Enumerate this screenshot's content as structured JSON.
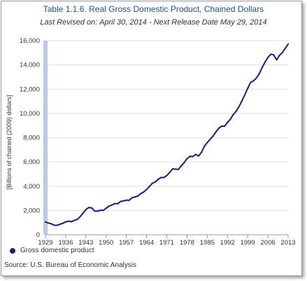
{
  "chart_data": {
    "type": "line",
    "title": "Table 1.1.6. Real Gross Domestic Product, Chained Dollars",
    "subtitle": "Last Revised on: April 30, 2014 - Next Release Date May 29, 2014",
    "ylabel": "[Billions of chained (2009) dollars]",
    "xlabel": "",
    "source": "Source: U.S. Bureau of Economic Analysis",
    "xlim": [
      1929,
      2013
    ],
    "ylim": [
      0,
      16000
    ],
    "yticks": [
      0,
      2000,
      4000,
      6000,
      8000,
      10000,
      12000,
      14000,
      16000
    ],
    "ytick_labels": [
      "0",
      "2,000",
      "4,000",
      "6,000",
      "8,000",
      "10,000",
      "12,000",
      "14,000",
      "16,000"
    ],
    "xticks": [
      1929,
      1936,
      1943,
      1950,
      1957,
      1964,
      1971,
      1978,
      1985,
      1992,
      1999,
      2006,
      2013
    ],
    "xtick_labels": [
      "1929",
      "1936",
      "1943",
      "1950",
      "1957",
      "1964",
      "1971",
      "1978",
      "1985",
      "1992",
      "1999",
      "2006",
      "2013"
    ],
    "grid": true,
    "legend": "bottom-left",
    "series": [
      {
        "name": "Gross domestic product",
        "color": "#13237a",
        "x": [
          1929,
          1930,
          1931,
          1932,
          1933,
          1934,
          1935,
          1936,
          1937,
          1938,
          1939,
          1940,
          1941,
          1942,
          1943,
          1944,
          1945,
          1946,
          1947,
          1948,
          1949,
          1950,
          1951,
          1952,
          1953,
          1954,
          1955,
          1956,
          1957,
          1958,
          1959,
          1960,
          1961,
          1962,
          1963,
          1964,
          1965,
          1966,
          1967,
          1968,
          1969,
          1970,
          1971,
          1972,
          1973,
          1974,
          1975,
          1976,
          1977,
          1978,
          1979,
          1980,
          1981,
          1982,
          1983,
          1984,
          1985,
          1986,
          1987,
          1988,
          1989,
          1990,
          1991,
          1992,
          1993,
          1994,
          1995,
          1996,
          1997,
          1998,
          1999,
          2000,
          2001,
          2002,
          2003,
          2004,
          2005,
          2006,
          2007,
          2008,
          2009,
          2010,
          2011,
          2012,
          2013
        ],
        "values": [
          1057,
          967,
          905,
          788,
          778,
          862,
          939,
          1061,
          1115,
          1083,
          1170,
          1267,
          1491,
          1774,
          2072,
          2240,
          2218,
          1961,
          1939,
          2019,
          2009,
          2185,
          2359,
          2448,
          2572,
          2559,
          2739,
          2794,
          2851,
          2845,
          3049,
          3120,
          3193,
          3384,
          3531,
          3734,
          3977,
          4239,
          4355,
          4569,
          4713,
          4722,
          4878,
          5141,
          5431,
          5404,
          5385,
          5675,
          5938,
          6267,
          6466,
          6450,
          6618,
          6491,
          6792,
          7285,
          7594,
          7861,
          8133,
          8475,
          8786,
          8955,
          8949,
          9267,
          9521,
          9905,
          10175,
          10561,
          11035,
          11526,
          12066,
          12560,
          12682,
          12909,
          13271,
          13774,
          14235,
          14615,
          14877,
          14834,
          14418,
          14784,
          15021,
          15369,
          15710
        ]
      }
    ]
  }
}
